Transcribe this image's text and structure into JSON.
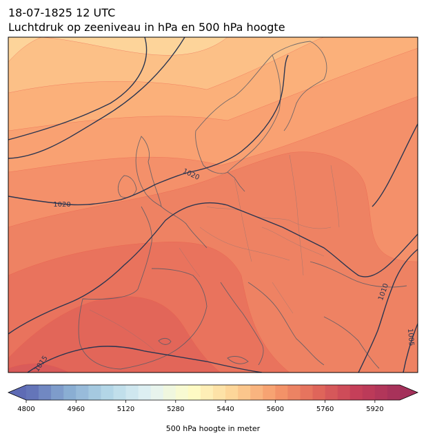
{
  "header": {
    "datetime": "18-07-1825 12 UTC",
    "subtitle": "Luchtdruk op zeeniveau in hPa en 500 hPa hoogte"
  },
  "map": {
    "fill_variable": "500 hPa hoogte",
    "contour_variable": "Luchtdruk op zeeniveau",
    "fill_colors": [
      "#fdd49a",
      "#fcc087",
      "#fbb07a",
      "#f9a172",
      "#f4906a",
      "#ee8263",
      "#e9735d",
      "#e26659",
      "#d95b5a"
    ],
    "isobar_color": "#2a3550",
    "isobar_labels": [
      {
        "text": "1020",
        "angle": 0
      },
      {
        "text": "1020",
        "angle": 25
      },
      {
        "text": "1015",
        "angle": -55
      },
      {
        "text": "1010",
        "angle": -70
      },
      {
        "text": "1005",
        "angle": 85
      }
    ]
  },
  "colorbar": {
    "label": "500 hPa hoogte in meter",
    "min": 4800,
    "max": 6000,
    "step": 40,
    "ticks": [
      "4800",
      "4960",
      "5120",
      "5280",
      "5440",
      "5600",
      "5760",
      "5920"
    ],
    "extend": "both",
    "stops": [
      "#5e6bb5",
      "#88acd2",
      "#b5d8e8",
      "#e4f3f4",
      "#fefcc6",
      "#fdd497",
      "#f69a6b",
      "#e0675a",
      "#c43d59",
      "#a3305a"
    ]
  }
}
